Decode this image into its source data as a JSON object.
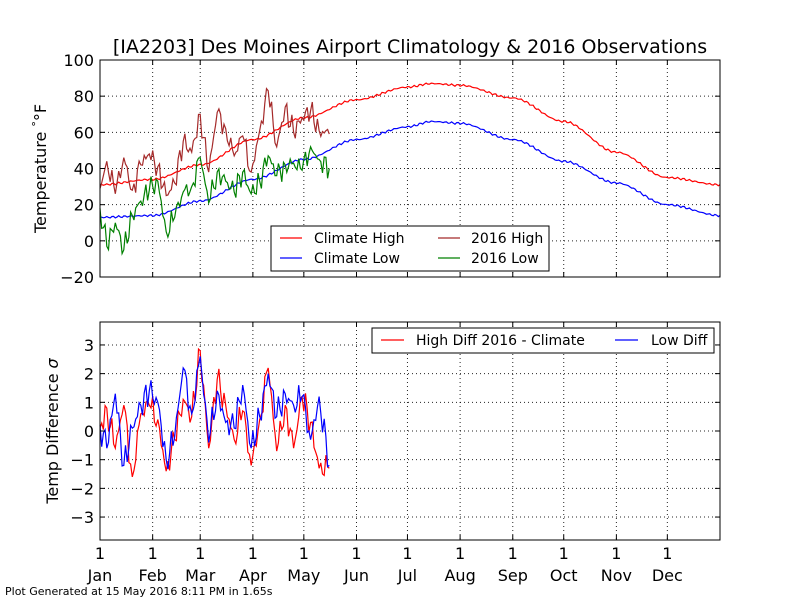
{
  "footer": "Plot Generated at 15 May 2016 8:11 PM in 1.65s",
  "chart_data": [
    {
      "type": "line",
      "title": "[IA2203] Des Moines Airport Climatology & 2016 Observations",
      "ylabel": "Temperature",
      "ylabel_unit": "°F",
      "ylim": [
        -20,
        100
      ],
      "yticks": [
        -20,
        0,
        20,
        40,
        60,
        80,
        100
      ],
      "xlim_day": [
        1,
        366
      ],
      "x_month_ticks": [
        "1",
        "1",
        "1",
        "1",
        "1",
        "1",
        "1",
        "1",
        "1",
        "1",
        "1",
        "1"
      ],
      "grid": true,
      "legend": {
        "placement": "lower center",
        "columns": 2
      },
      "series": [
        {
          "name": "Climate High",
          "color": "#ff0000",
          "kind": "daily_climatology",
          "day": [
            1,
            32,
            60,
            91,
            121,
            152,
            182,
            196,
            213,
            244,
            274,
            305,
            335,
            366
          ],
          "value": [
            31,
            34,
            42,
            56,
            68,
            78,
            85,
            87,
            86,
            79,
            66,
            49,
            35,
            31
          ]
        },
        {
          "name": "Climate Low",
          "color": "#0000ff",
          "kind": "daily_climatology",
          "day": [
            1,
            32,
            60,
            91,
            121,
            152,
            182,
            196,
            213,
            244,
            274,
            305,
            335,
            366
          ],
          "value": [
            13,
            14,
            22,
            34,
            45,
            56,
            63,
            66,
            65,
            56,
            44,
            32,
            20,
            14
          ]
        },
        {
          "name": "2016 High",
          "color": "#a52a2a",
          "kind": "observed",
          "day": [
            1,
            5,
            10,
            15,
            20,
            25,
            30,
            35,
            40,
            45,
            50,
            55,
            60,
            65,
            70,
            75,
            80,
            85,
            90,
            95,
            100,
            105,
            110,
            115,
            120,
            125,
            130,
            136
          ],
          "value": [
            29,
            44,
            26,
            46,
            28,
            42,
            48,
            41,
            25,
            32,
            55,
            49,
            70,
            38,
            71,
            62,
            47,
            58,
            38,
            61,
            83,
            52,
            74,
            60,
            68,
            72,
            61,
            59
          ]
        },
        {
          "name": "2016 Low",
          "color": "#008000",
          "kind": "observed",
          "day": [
            1,
            5,
            10,
            15,
            20,
            25,
            30,
            35,
            40,
            45,
            50,
            55,
            60,
            65,
            70,
            75,
            80,
            85,
            90,
            95,
            100,
            105,
            110,
            115,
            120,
            125,
            130,
            136
          ],
          "value": [
            18,
            -3,
            10,
            -5,
            14,
            22,
            28,
            33,
            5,
            13,
            27,
            30,
            46,
            21,
            38,
            33,
            27,
            38,
            26,
            33,
            47,
            36,
            42,
            43,
            39,
            52,
            45,
            40
          ]
        }
      ]
    },
    {
      "type": "line",
      "ylabel": "Temp Difference",
      "ylabel_unit": "σ",
      "ylim": [
        -3.8,
        3.8
      ],
      "yticks": [
        -3,
        -2,
        -1,
        0,
        1,
        2,
        3
      ],
      "xlim_day": [
        1,
        366
      ],
      "x_month_ticks": [
        "1",
        "1",
        "1",
        "1",
        "1",
        "1",
        "1",
        "1",
        "1",
        "1",
        "1",
        "1"
      ],
      "x_month_labels": [
        "Jan",
        "Feb",
        "Mar",
        "Apr",
        "May",
        "Jun",
        "Jul",
        "Aug",
        "Sep",
        "Oct",
        "Nov",
        "Dec"
      ],
      "grid": true,
      "legend": {
        "placement": "top-right",
        "columns": 2
      },
      "series": [
        {
          "name": "High Diff 2016 - Climate",
          "color": "#ff0000",
          "day": [
            1,
            5,
            10,
            15,
            20,
            25,
            30,
            35,
            40,
            45,
            50,
            55,
            60,
            65,
            70,
            75,
            80,
            85,
            90,
            95,
            100,
            105,
            110,
            115,
            120,
            125,
            130,
            136
          ],
          "value": [
            0.1,
            0.8,
            -0.6,
            0.9,
            -1.6,
            0.6,
            0.9,
            0.4,
            -1.4,
            -0.3,
            1.1,
            0.5,
            2.8,
            -0.6,
            1.8,
            0.9,
            -0.3,
            0.7,
            -1.2,
            0.4,
            2.2,
            -0.7,
            0.9,
            -0.6,
            1.2,
            0.3,
            -1.3,
            -1.3
          ]
        },
        {
          "name": "Low Diff",
          "color": "#0000ff",
          "day": [
            1,
            5,
            10,
            15,
            20,
            25,
            30,
            35,
            40,
            45,
            50,
            55,
            60,
            65,
            70,
            75,
            80,
            85,
            90,
            95,
            100,
            105,
            110,
            115,
            120,
            125,
            130,
            136
          ],
          "value": [
            0.2,
            -0.6,
            1.3,
            -1.2,
            0.1,
            0.9,
            1.4,
            1.0,
            -1.0,
            -0.2,
            2.2,
            0.6,
            2.6,
            -0.4,
            1.4,
            0.3,
            0.1,
            1.6,
            -0.6,
            0.5,
            2.0,
            0.5,
            1.3,
            0.9,
            1.2,
            -0.3,
            1.2,
            -1.2
          ]
        }
      ]
    }
  ]
}
